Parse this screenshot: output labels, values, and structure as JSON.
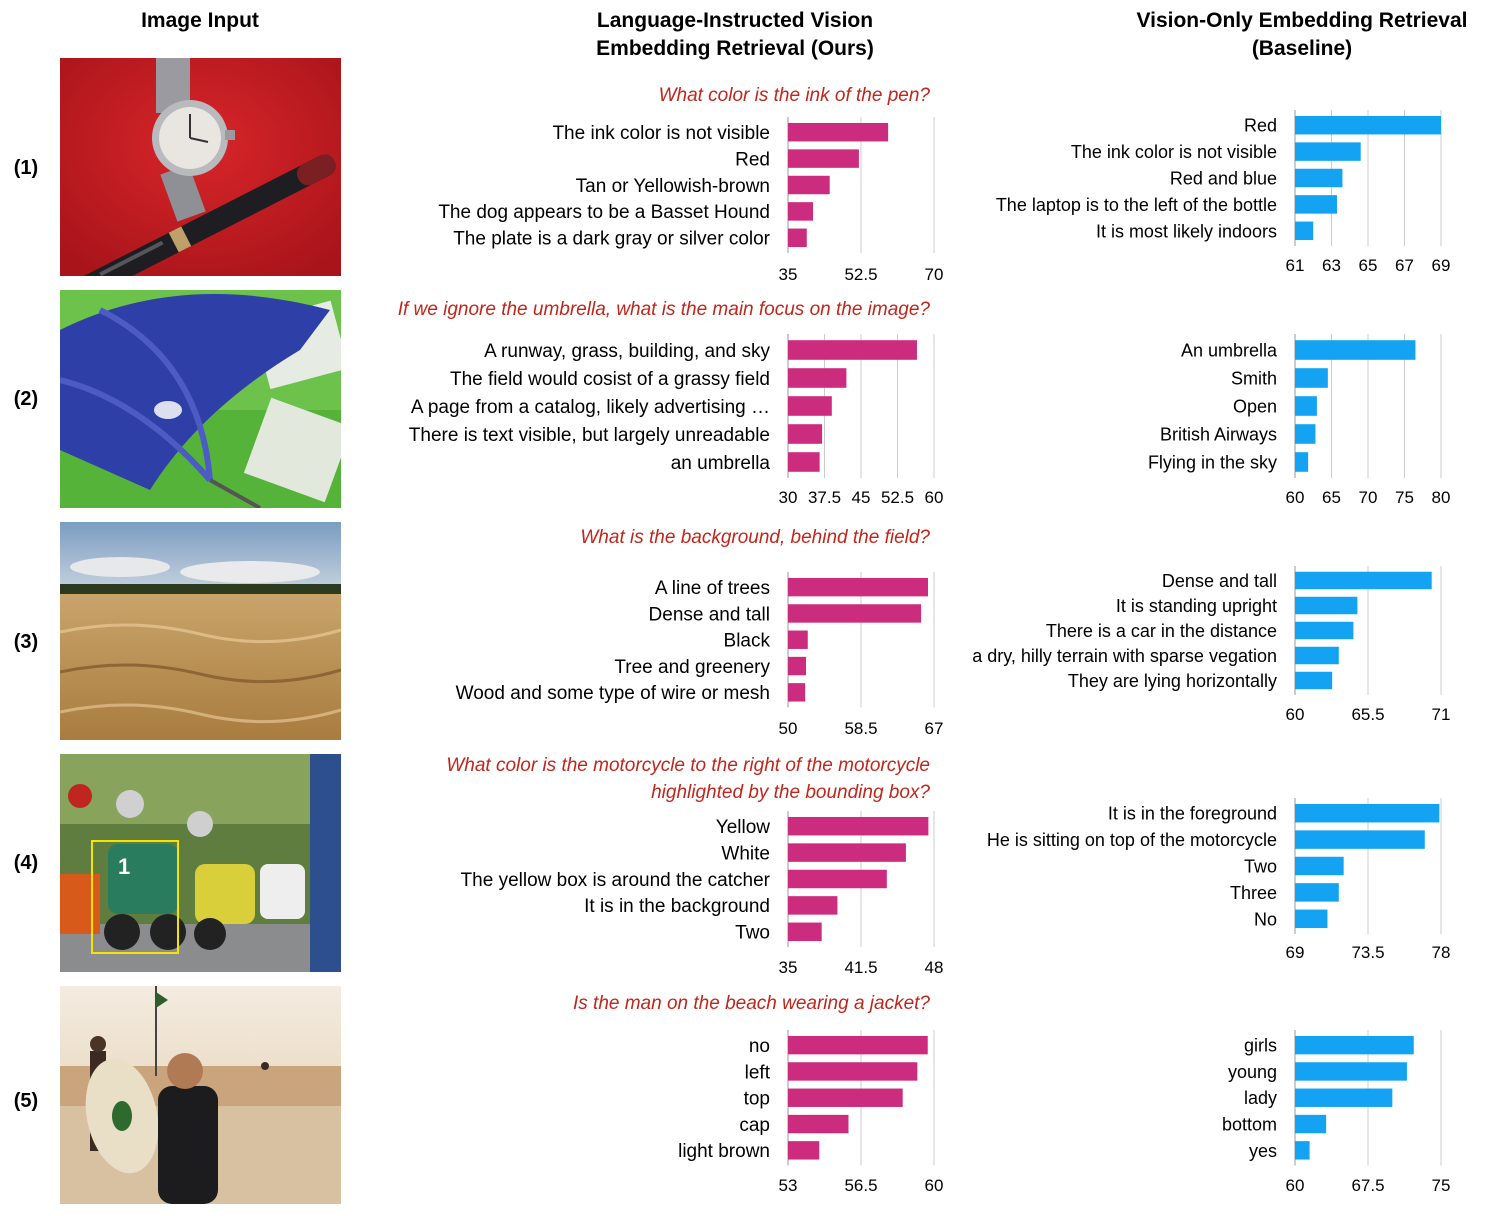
{
  "headers": {
    "image_input": "Image Input",
    "ours_line1": "Language-Instructed Vision",
    "ours_line2": "Embedding Retrieval (Ours)",
    "baseline_line1": "Vision-Only Embedding Retrieval",
    "baseline_line2": "(Baseline)"
  },
  "colors": {
    "ours_bar": "#cc2c7e",
    "baseline_bar": "#14a3f2",
    "question": "#c0261b",
    "grid": "#cccccc"
  },
  "rows": [
    {
      "label": "(1)",
      "question": [
        "What color is the ink of the pen?"
      ],
      "image": "red tablecloth with a wristwatch and a fountain pen"
    },
    {
      "label": "(2)",
      "question": [
        "If we ignore the umbrella, what is the main focus on the image?"
      ],
      "image": "blue umbrella over green grass"
    },
    {
      "label": "(3)",
      "question": [
        "What is the background, behind the field?"
      ],
      "image": "wheat field under a cloudy sky"
    },
    {
      "label": "(4)",
      "question": [
        "What color is the motorcycle to the right of the motorcycle",
        "highlighted by the bounding box?"
      ],
      "image": "motorcycle race start with a yellow bounding box"
    },
    {
      "label": "(5)",
      "question": [
        "Is the man on the beach wearing a jacket?"
      ],
      "image": "surfer holding a surfboard on a beach"
    }
  ],
  "chart_data": [
    {
      "type": "bar",
      "orientation": "horizontal",
      "panel": "ours",
      "row": "(1)",
      "categories": [
        "The ink color is not visible",
        "Red",
        "Tan or Yellowish-brown",
        "The dog appears to be a Basset Hound",
        "The plate is a dark gray or silver color"
      ],
      "values": [
        59,
        52,
        45,
        41,
        39.5
      ],
      "xlim": [
        35,
        70
      ],
      "ticks": [
        "35",
        "52.5",
        "70"
      ],
      "grid": true
    },
    {
      "type": "bar",
      "orientation": "horizontal",
      "panel": "baseline",
      "row": "(1)",
      "categories": [
        "Red",
        "The ink color is not visible",
        "Red and blue",
        "The laptop is to the left of the bottle",
        "It is most likely indoors"
      ],
      "values": [
        69,
        64.6,
        63.6,
        63.3,
        62
      ],
      "xlim": [
        61,
        69
      ],
      "ticks": [
        "61",
        "63",
        "65",
        "67",
        "69"
      ],
      "grid": true
    },
    {
      "type": "bar",
      "orientation": "horizontal",
      "panel": "ours",
      "row": "(2)",
      "categories": [
        "A runway, grass, building, and sky",
        "The field would cosist of a grassy field",
        "A page from a catalog, likely advertising …",
        "There is text visible, but largely unreadable",
        "an umbrella"
      ],
      "values": [
        56.5,
        42,
        39,
        37,
        36.5
      ],
      "xlim": [
        30,
        60
      ],
      "ticks": [
        "30",
        "37.5",
        "45",
        "52.5",
        "60"
      ],
      "grid": true
    },
    {
      "type": "bar",
      "orientation": "horizontal",
      "panel": "baseline",
      "row": "(2)",
      "categories": [
        "An umbrella",
        "Smith",
        "Open",
        "British Airways",
        "Flying in the sky"
      ],
      "values": [
        76.5,
        64.5,
        63,
        62.8,
        61.8
      ],
      "xlim": [
        60,
        80
      ],
      "ticks": [
        "60",
        "65",
        "70",
        "75",
        "80"
      ],
      "grid": true
    },
    {
      "type": "bar",
      "orientation": "horizontal",
      "panel": "ours",
      "row": "(3)",
      "categories": [
        "A line of trees",
        "Dense and tall",
        "Black",
        "Tree and greenery",
        "Wood and some type of wire or mesh"
      ],
      "values": [
        66.3,
        65.5,
        52.3,
        52.1,
        52
      ],
      "xlim": [
        50,
        67
      ],
      "ticks": [
        "50",
        "58.5",
        "67"
      ],
      "grid": true
    },
    {
      "type": "bar",
      "orientation": "horizontal",
      "panel": "baseline",
      "row": "(3)",
      "categories": [
        "Dense and tall",
        "It is standing upright",
        "There is a car in the distance",
        "a dry, hilly terrain with sparse vegation",
        "They are lying horizontally"
      ],
      "values": [
        70.3,
        64.7,
        64.4,
        63.3,
        62.8
      ],
      "xlim": [
        60,
        71
      ],
      "ticks": [
        "60",
        "65.5",
        "71"
      ],
      "grid": true
    },
    {
      "type": "bar",
      "orientation": "horizontal",
      "panel": "ours",
      "row": "(4)",
      "categories": [
        "Yellow",
        "White",
        "The yellow box  is around the catcher",
        "It is in the background",
        "Two"
      ],
      "values": [
        47.5,
        45.5,
        43.8,
        39.4,
        38
      ],
      "xlim": [
        35,
        48
      ],
      "ticks": [
        "35",
        "41.5",
        "48"
      ],
      "grid": true
    },
    {
      "type": "bar",
      "orientation": "horizontal",
      "panel": "baseline",
      "row": "(4)",
      "categories": [
        "It is in the foreground",
        "He is sitting on top of the motorcycle",
        "Two",
        "Three",
        "No"
      ],
      "values": [
        77.9,
        77,
        72,
        71.7,
        71
      ],
      "xlim": [
        69,
        78
      ],
      "ticks": [
        "69",
        "73.5",
        "78"
      ],
      "grid": true
    },
    {
      "type": "bar",
      "orientation": "horizontal",
      "panel": "ours",
      "row": "(5)",
      "categories": [
        "no",
        "left",
        "top",
        "cap",
        "light brown"
      ],
      "values": [
        59.7,
        59.2,
        58.5,
        55.9,
        54.5
      ],
      "xlim": [
        53,
        60
      ],
      "ticks": [
        "53",
        "56.5",
        "60"
      ],
      "grid": true
    },
    {
      "type": "bar",
      "orientation": "horizontal",
      "panel": "baseline",
      "row": "(5)",
      "categories": [
        "girls",
        "young",
        "lady",
        "bottom",
        "yes"
      ],
      "values": [
        72.2,
        71.5,
        70,
        63.2,
        61.5
      ],
      "xlim": [
        60,
        75
      ],
      "ticks": [
        "60",
        "67.5",
        "75"
      ],
      "grid": true
    }
  ]
}
